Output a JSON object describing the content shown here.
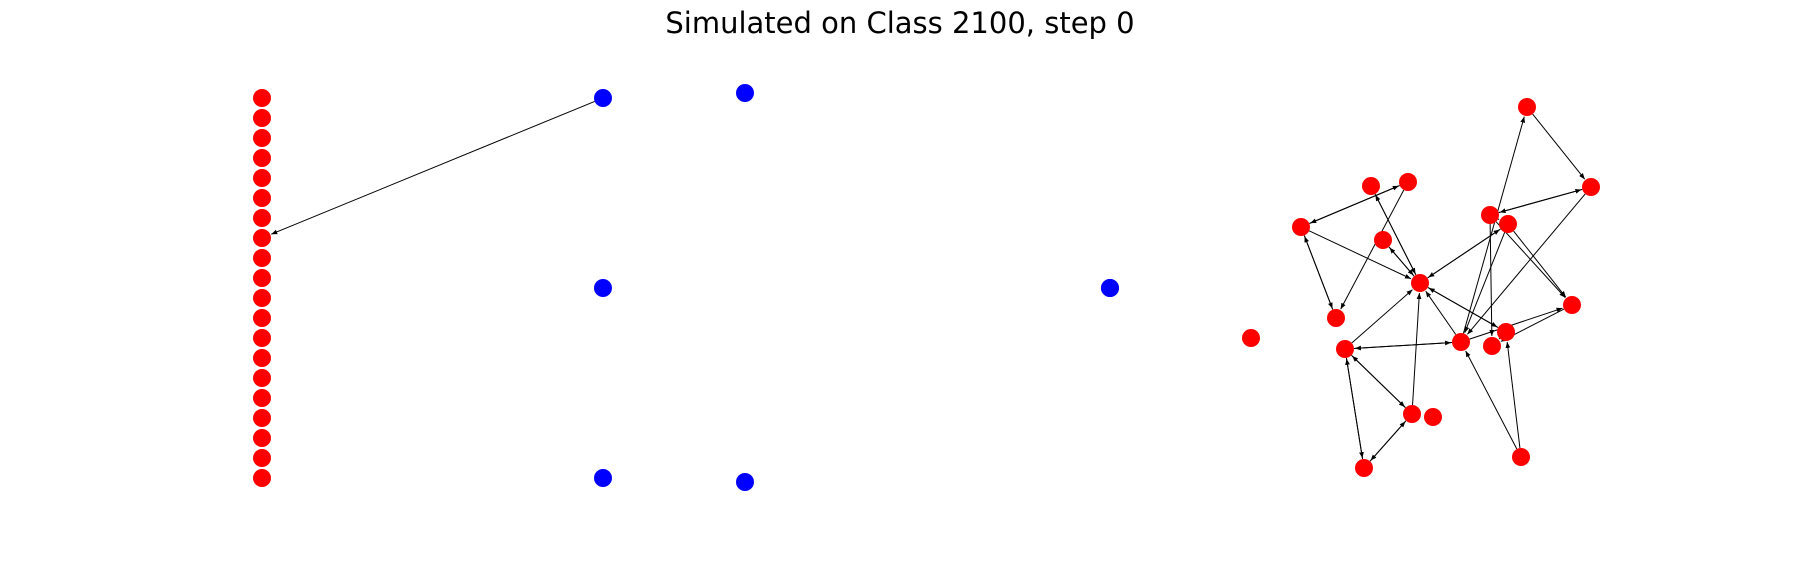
{
  "title": "Simulated on Class 2100, step 0",
  "colors": {
    "red": "#ff0000",
    "blue": "#0000ff",
    "edge": "#000000"
  },
  "nodes": [
    {
      "id": "c0",
      "color": "red"
    },
    {
      "id": "c1",
      "color": "red"
    },
    {
      "id": "c2",
      "color": "red"
    },
    {
      "id": "c3",
      "color": "red"
    },
    {
      "id": "c4",
      "color": "red"
    },
    {
      "id": "c5",
      "color": "red"
    },
    {
      "id": "c6",
      "color": "red"
    },
    {
      "id": "c7",
      "color": "red"
    },
    {
      "id": "c8",
      "color": "red"
    },
    {
      "id": "c9",
      "color": "red"
    },
    {
      "id": "c10",
      "color": "red"
    },
    {
      "id": "c11",
      "color": "red"
    },
    {
      "id": "c12",
      "color": "red"
    },
    {
      "id": "c13",
      "color": "red"
    },
    {
      "id": "c14",
      "color": "red"
    },
    {
      "id": "c15",
      "color": "red"
    },
    {
      "id": "c16",
      "color": "red"
    },
    {
      "id": "c17",
      "color": "red"
    },
    {
      "id": "c18",
      "color": "red"
    },
    {
      "id": "c19",
      "color": "red"
    },
    {
      "id": "b0",
      "color": "blue"
    },
    {
      "id": "b1",
      "color": "blue"
    },
    {
      "id": "b2",
      "color": "blue"
    },
    {
      "id": "b3",
      "color": "blue"
    },
    {
      "id": "b4",
      "color": "blue"
    },
    {
      "id": "b5",
      "color": "blue"
    },
    {
      "id": "b6",
      "color": "blue"
    },
    {
      "id": "r0",
      "color": "red"
    },
    {
      "id": "r1",
      "color": "red"
    },
    {
      "id": "r2",
      "color": "red"
    },
    {
      "id": "r3",
      "color": "red"
    },
    {
      "id": "r4",
      "color": "red"
    },
    {
      "id": "r5",
      "color": "red"
    },
    {
      "id": "r6",
      "color": "red"
    },
    {
      "id": "r7",
      "color": "red"
    },
    {
      "id": "r8",
      "color": "red"
    },
    {
      "id": "r9",
      "color": "red"
    },
    {
      "id": "r10",
      "color": "red"
    },
    {
      "id": "r11",
      "color": "red"
    },
    {
      "id": "r12",
      "color": "red"
    },
    {
      "id": "r13",
      "color": "red"
    },
    {
      "id": "r14",
      "color": "red"
    },
    {
      "id": "r15",
      "color": "red"
    },
    {
      "id": "r16",
      "color": "red"
    },
    {
      "id": "r17",
      "color": "red"
    },
    {
      "id": "r18",
      "color": "red"
    },
    {
      "id": "r19",
      "color": "red"
    }
  ],
  "edges": [
    [
      "b0",
      "c7"
    ],
    [
      "r3",
      "r2"
    ],
    [
      "r2",
      "r3"
    ],
    [
      "r3",
      "r10"
    ],
    [
      "r10",
      "r3"
    ],
    [
      "r2",
      "r10"
    ],
    [
      "r3",
      "r7"
    ],
    [
      "r7",
      "r1"
    ],
    [
      "r1",
      "r7"
    ],
    [
      "r7",
      "r8"
    ],
    [
      "r8",
      "r7"
    ],
    [
      "r7",
      "r4"
    ],
    [
      "r4",
      "r7"
    ],
    [
      "r12",
      "r16"
    ],
    [
      "r16",
      "r12"
    ],
    [
      "r12",
      "r15"
    ],
    [
      "r15",
      "r12"
    ],
    [
      "r12",
      "r7"
    ],
    [
      "r16",
      "r15"
    ],
    [
      "r15",
      "r16"
    ],
    [
      "r15",
      "r7"
    ],
    [
      "r7",
      "r13"
    ],
    [
      "r9",
      "r7"
    ],
    [
      "r9",
      "r12"
    ],
    [
      "r9",
      "r0"
    ],
    [
      "r0",
      "r5"
    ],
    [
      "r5",
      "r6"
    ],
    [
      "r6",
      "r5"
    ],
    [
      "r6",
      "r8"
    ],
    [
      "r6",
      "r14"
    ],
    [
      "r6",
      "r11"
    ],
    [
      "r5",
      "r9"
    ],
    [
      "r9",
      "r11"
    ],
    [
      "r8",
      "r9"
    ],
    [
      "r8",
      "r11"
    ],
    [
      "r11",
      "r14"
    ],
    [
      "r13",
      "r14"
    ],
    [
      "r13",
      "r7"
    ],
    [
      "r19",
      "r9"
    ],
    [
      "r19",
      "r13"
    ],
    [
      "r12",
      "r9"
    ]
  ]
}
